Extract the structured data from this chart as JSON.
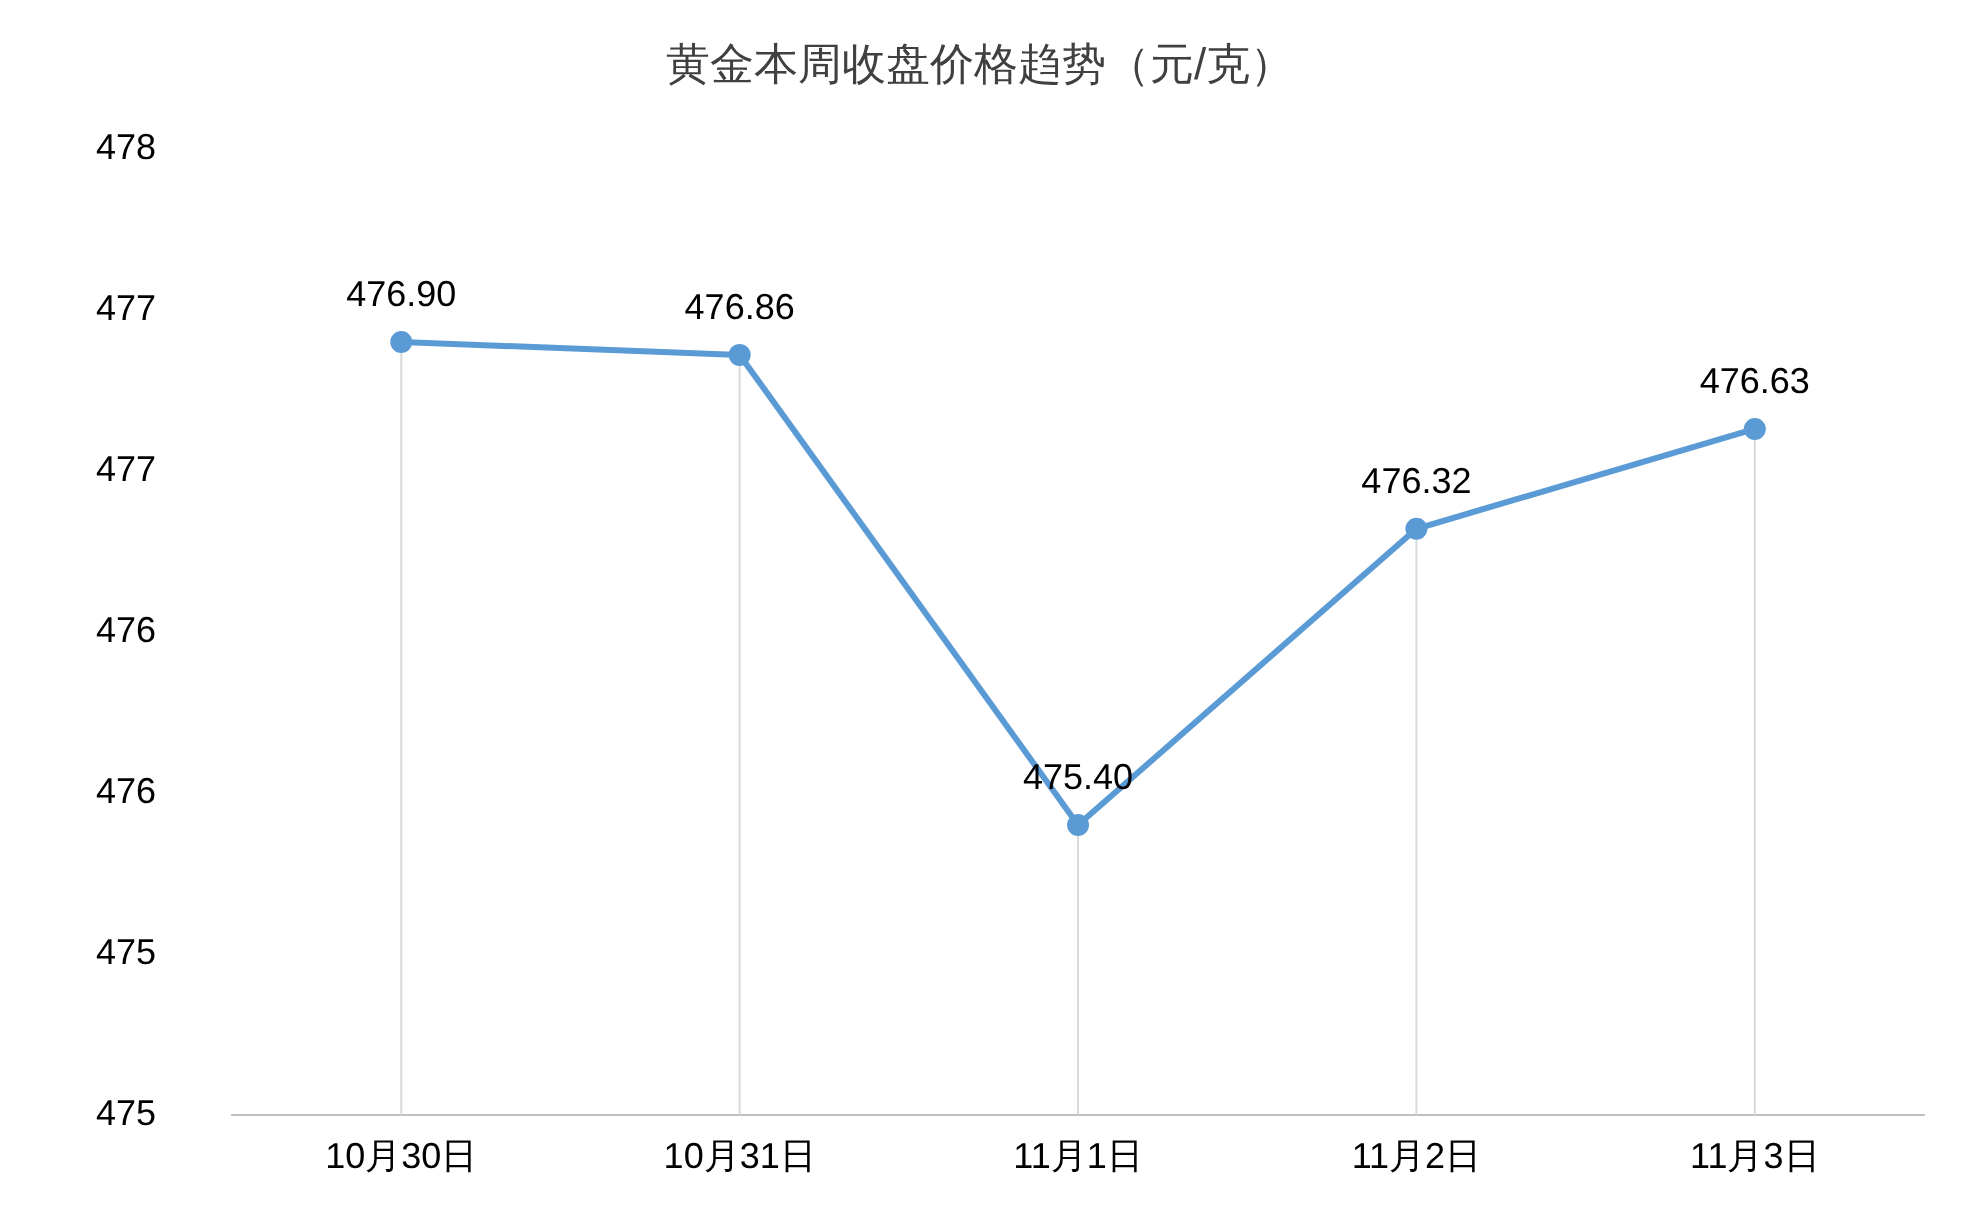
{
  "chart_data": {
    "type": "line",
    "title": "黄金本周收盘价格趋势（元/克）",
    "categories": [
      "10月30日",
      "10月31日",
      "11月1日",
      "11月2日",
      "11月3日"
    ],
    "series": [
      {
        "color": "#5b9bd5",
        "values": [
          476.9,
          476.86,
          475.4,
          476.32,
          476.63
        ],
        "value_labels": [
          "476.90",
          "476.86",
          "475.40",
          "476.32",
          "476.63"
        ]
      }
    ],
    "ylim": [
      474.5,
      477.5
    ],
    "yticks": [
      {
        "value": 474.5,
        "label": "475"
      },
      {
        "value": 475,
        "label": "475"
      },
      {
        "value": 475.5,
        "label": "476"
      },
      {
        "value": 476,
        "label": "476"
      },
      {
        "value": 476.5,
        "label": "477"
      },
      {
        "value": 477,
        "label": "477"
      },
      {
        "value": 477.5,
        "label": "478"
      }
    ],
    "grid": "x",
    "legend": false,
    "marker": "circle",
    "line_style": "solid"
  }
}
